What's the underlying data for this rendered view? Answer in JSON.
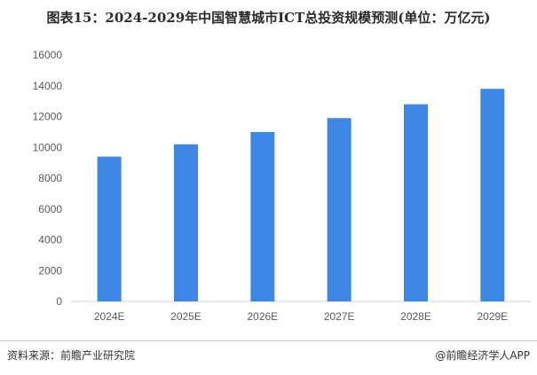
{
  "title": "图表15：2024-2029年中国智慧城市ICT总投资规模预测(单位：万亿元)",
  "footer": {
    "source": "资料来源：前瞻产业研究院",
    "credit": "@前瞻经济学人APP"
  },
  "colors": {
    "bar": "#3f87e6",
    "axis": "#d0d0d0",
    "text": "#595959"
  },
  "chart_data": {
    "type": "bar",
    "title": "图表15：2024-2029年中国智慧城市ICT总投资规模预测(单位：万亿元)",
    "xlabel": "",
    "ylabel": "",
    "categories": [
      "2024E",
      "2025E",
      "2026E",
      "2027E",
      "2028E",
      "2029E"
    ],
    "values": [
      9400,
      10200,
      11000,
      11900,
      12800,
      13800
    ],
    "ylim": [
      0,
      16000
    ],
    "yticks": [
      "0",
      "2000",
      "4000",
      "6000",
      "8000",
      "10000",
      "12000",
      "14000",
      "16000"
    ],
    "grid": false,
    "legend": "none"
  }
}
